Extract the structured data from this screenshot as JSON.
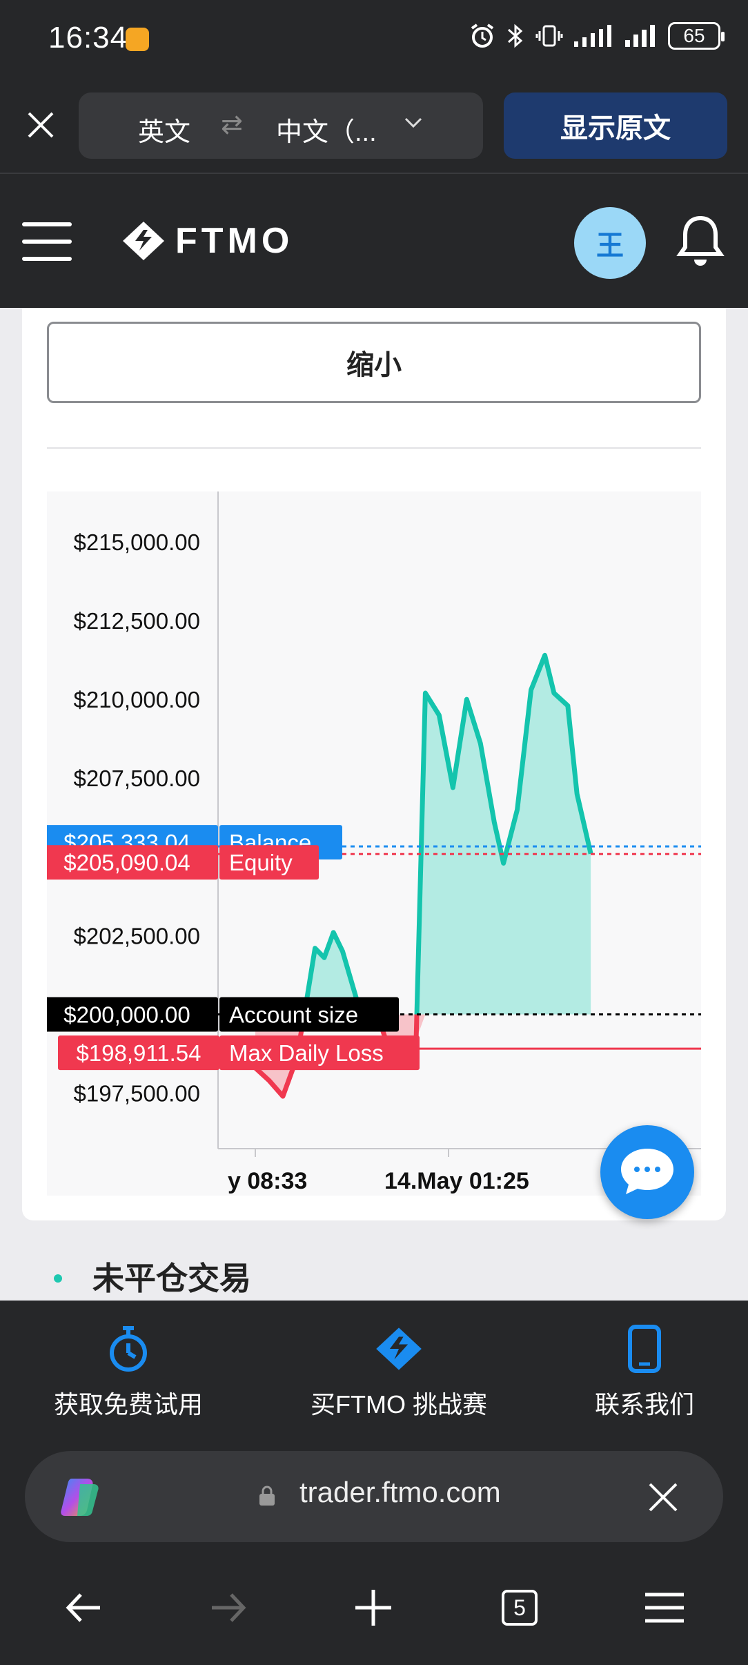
{
  "status_bar": {
    "time": "16:34",
    "battery": "65"
  },
  "translate_bar": {
    "source_lang": "英文",
    "swap_symbol": "⇄",
    "target_lang": "中文（...",
    "show_original_label": "显示原文"
  },
  "header": {
    "logo_text": "FTMO",
    "avatar_initial": "王"
  },
  "card": {
    "shrink_label": "缩小"
  },
  "chart_data": {
    "type": "area",
    "y_tick_labels": [
      "$215,000.00",
      "$212,500.00",
      "$210,000.00",
      "$207,500.00",
      "$202,500.00",
      "$197,500.00"
    ],
    "y_ticks": [
      215000,
      212500,
      210000,
      207500,
      202500,
      197500
    ],
    "x_tick_labels": [
      "y 08:33",
      "14.May 01:25"
    ],
    "ylim": [
      196000,
      216600
    ],
    "reference_lines": [
      {
        "label": "Balance",
        "value_label": "$205,333.04",
        "value": 205333.04,
        "color": "#1a8cf0"
      },
      {
        "label": "Equity",
        "value_label": "$205,090.04",
        "value": 205090.04,
        "color": "#f0384f"
      },
      {
        "label": "Account size",
        "value_label": "$200,000.00",
        "value": 200000.0,
        "color": "#000000"
      },
      {
        "label": "Max Daily Loss",
        "value_label": "$198,911.54",
        "value": 198911.54,
        "color": "#f0384f"
      }
    ],
    "series": [
      {
        "x": [
          0.03,
          0.06,
          0.09,
          0.12,
          0.14,
          0.16,
          0.18,
          0.2,
          0.22,
          0.25,
          0.28,
          0.3,
          0.33,
          0.36,
          0.38,
          0.4,
          0.43,
          0.46,
          0.49,
          0.52,
          0.55,
          0.57,
          0.6,
          0.63,
          0.66,
          0.68,
          0.71,
          0.73,
          0.76
        ],
        "y": [
          198300,
          197900,
          197400,
          198600,
          200300,
          202100,
          201800,
          202600,
          202000,
          200500,
          200200,
          199800,
          198500,
          199000,
          199200,
          210200,
          209500,
          207200,
          210000,
          208600,
          206100,
          204800,
          206500,
          210300,
          211400,
          210200,
          209800,
          207000,
          205100
        ]
      }
    ],
    "colors": {
      "line": "#14c4ad",
      "fill": "#b3ebe3",
      "loss": "#f0384f"
    }
  },
  "section": {
    "title": "未平仓交易"
  },
  "bottom_nav": {
    "items": [
      {
        "label": "获取免费试用",
        "icon": "stopwatch-icon"
      },
      {
        "label": "买FTMO 挑战赛",
        "icon": "ftmo-logo-icon"
      },
      {
        "label": "联系我们",
        "icon": "phone-icon"
      }
    ]
  },
  "url_bar": {
    "url": "trader.ftmo.com"
  },
  "browser_toolbar": {
    "tab_count": "5"
  }
}
